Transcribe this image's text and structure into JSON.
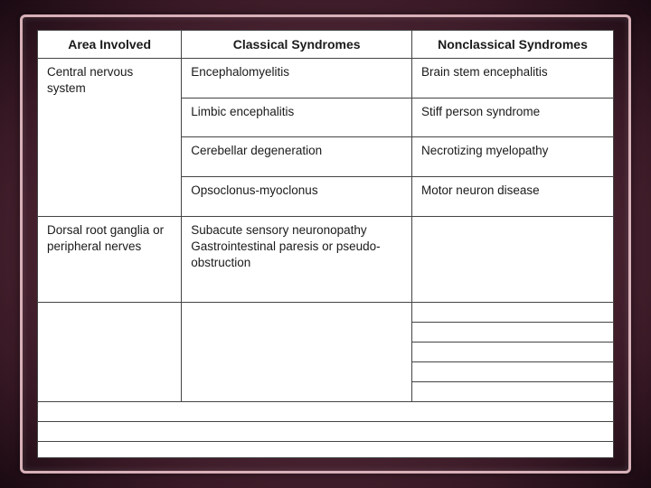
{
  "headers": {
    "area": "Area Involved",
    "classical": "Classical Syndromes",
    "nonclassical": "Nonclassical Syndromes"
  },
  "groups": [
    {
      "area": "Central nervous system",
      "rows": [
        {
          "classical": "Encephalomyelitis",
          "nonclassical": "Brain stem encephalitis"
        },
        {
          "classical": "Limbic encephalitis",
          "nonclassical": "Stiff person syndrome"
        },
        {
          "classical": "Cerebellar degeneration",
          "nonclassical": "Necrotizing myelopathy"
        },
        {
          "classical": "Opsoclonus-myoclonus",
          "nonclassical": "Motor neuron disease"
        }
      ]
    },
    {
      "area": "Dorsal root ganglia or peripheral nerves",
      "rows": [
        {
          "classical": "Subacute sensory neuronopathy\nGastrointestinal paresis or pseudo-obstruction",
          "nonclassical": ""
        }
      ]
    }
  ],
  "style": {
    "background_gradient": [
      "#7d4a5a",
      "#5a2d3d",
      "#3a1a26",
      "#1a0a12"
    ],
    "frame_border_color": "#d8b0b8",
    "cell_border_color": "#444444",
    "cell_background": "#ffffff",
    "text_color": "#1a1a1a",
    "header_fontsize": 14,
    "body_fontsize": 13.5
  }
}
